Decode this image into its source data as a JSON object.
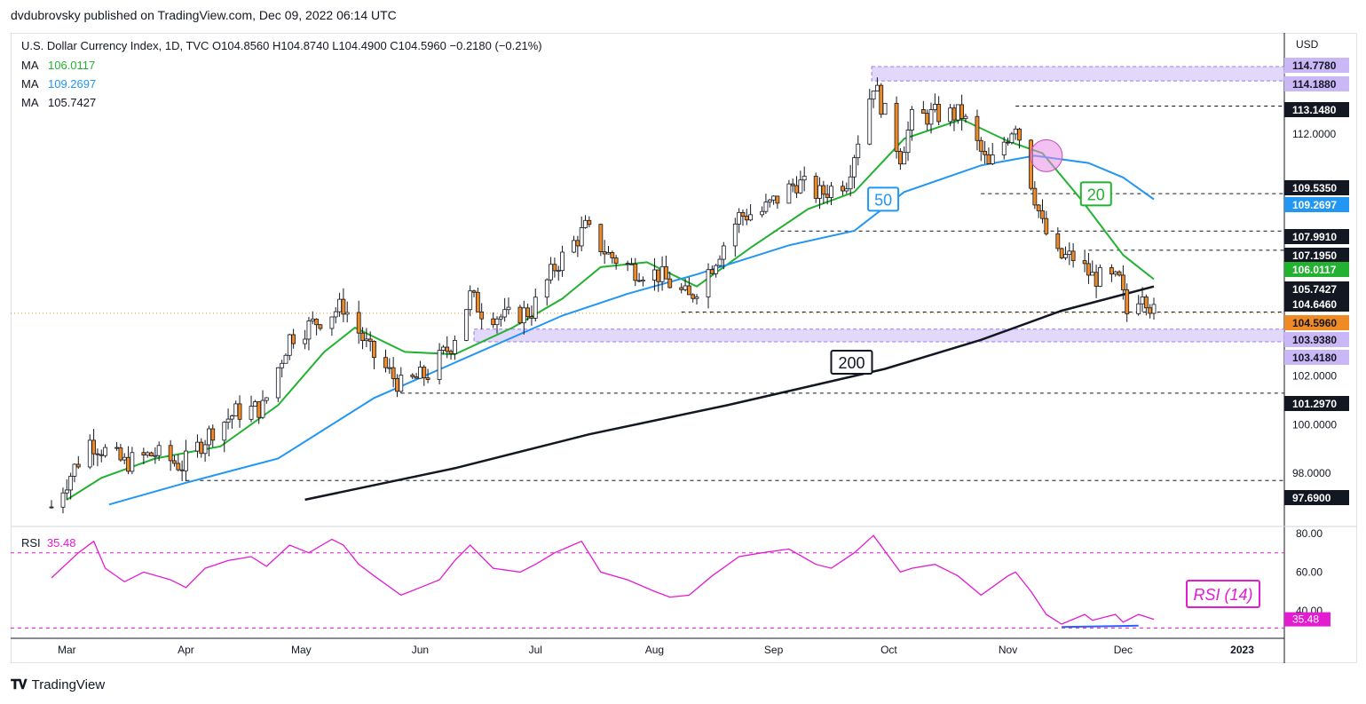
{
  "publisher": "dvdubrovsky published on TradingView.com, Dec 09, 2022 06:14 UTC",
  "legend": {
    "title": "U.S. Dollar Currency Index, 1D, TVC  O104.8560  H104.8740  L104.4900  C104.5960  −0.2180 (−0.21%)",
    "ma": [
      {
        "label": "MA",
        "value": "106.0117",
        "color": "#22b130"
      },
      {
        "label": "MA",
        "value": "109.2697",
        "color": "#2196f3"
      },
      {
        "label": "MA",
        "value": "105.7427",
        "color": "#131722"
      }
    ]
  },
  "rsi_legend": {
    "label": "RSI",
    "value": "35.48",
    "color": "#e31bd1"
  },
  "footer": {
    "brand": "TradingView",
    "logo": "tradingview-logo-icon"
  },
  "colors": {
    "up": "#ffffff",
    "down": "#f08a24",
    "wick": "#131722",
    "ma20": "#22b130",
    "ma50": "#2196f3",
    "ma200": "#131722",
    "rsi": "#e31bd1",
    "zone": "#c9b8f5"
  },
  "chart_data": [
    {
      "type": "candlestick",
      "title": "U.S. Dollar Currency Index, 1D, TVC",
      "currency_label": "USD",
      "ylim": [
        97.0,
        115.3
      ],
      "y_ticks": [
        "112.0000",
        "102.0000",
        "100.0000",
        "98.0000"
      ],
      "x_ticks": [
        "Mar",
        "Apr",
        "May",
        "Jun",
        "Jul",
        "Aug",
        "Sep",
        "Oct",
        "Nov",
        "Dec",
        "2023"
      ],
      "dates_range": [
        "2022-02-25",
        "2022-12-09"
      ],
      "price_tags": [
        {
          "text": "114.7780",
          "kind": "zone"
        },
        {
          "text": "114.1880",
          "kind": "zone"
        },
        {
          "text": "113.1480",
          "kind": "level"
        },
        {
          "text": "109.5350",
          "kind": "level"
        },
        {
          "text": "109.2697",
          "kind": "ma50"
        },
        {
          "text": "107.9910",
          "kind": "level"
        },
        {
          "text": "107.1950",
          "kind": "level"
        },
        {
          "text": "106.0117",
          "kind": "ma20"
        },
        {
          "text": "105.7427",
          "kind": "ma200"
        },
        {
          "text": "104.6460",
          "kind": "level"
        },
        {
          "text": "104.5960",
          "kind": "last"
        },
        {
          "text": "103.9380",
          "kind": "zone"
        },
        {
          "text": "103.4180",
          "kind": "zone"
        },
        {
          "text": "101.2970",
          "kind": "level"
        },
        {
          "text": "97.6900",
          "kind": "level"
        }
      ],
      "resistance_zone": [
        114.188,
        114.778
      ],
      "support_zone": [
        103.418,
        103.938
      ],
      "horizontal_levels": [
        113.148,
        109.535,
        107.991,
        107.195,
        104.646,
        101.297,
        97.69
      ],
      "last_price": 104.596,
      "close_path": [
        [
          "2022-02-25",
          96.6
        ],
        [
          "2022-03-07",
          99.3
        ],
        [
          "2022-03-16",
          98.4
        ],
        [
          "2022-03-24",
          98.8
        ],
        [
          "2022-03-31",
          98.3
        ],
        [
          "2022-04-08",
          99.8
        ],
        [
          "2022-04-14",
          100.5
        ],
        [
          "2022-04-21",
          100.7
        ],
        [
          "2022-04-28",
          103.6
        ],
        [
          "2022-05-12",
          104.9
        ],
        [
          "2022-05-19",
          103.0
        ],
        [
          "2022-05-27",
          101.6
        ],
        [
          "2022-06-03",
          102.1
        ],
        [
          "2022-06-09",
          103.3
        ],
        [
          "2022-06-14",
          105.3
        ],
        [
          "2022-06-17",
          104.7
        ],
        [
          "2022-06-23",
          104.4
        ],
        [
          "2022-06-30",
          104.7
        ],
        [
          "2022-07-06",
          106.5
        ],
        [
          "2022-07-14",
          108.1
        ],
        [
          "2022-07-20",
          107.0
        ],
        [
          "2022-07-27",
          106.4
        ],
        [
          "2022-08-02",
          106.2
        ],
        [
          "2022-08-10",
          105.2
        ],
        [
          "2022-08-16",
          106.6
        ],
        [
          "2022-08-23",
          108.6
        ],
        [
          "2022-08-29",
          108.8
        ],
        [
          "2022-09-07",
          110.0
        ],
        [
          "2022-09-13",
          109.5
        ],
        [
          "2022-09-20",
          110.1
        ],
        [
          "2022-09-27",
          114.1
        ],
        [
          "2022-10-04",
          111.1
        ],
        [
          "2022-10-07",
          112.6
        ],
        [
          "2022-10-13",
          112.8
        ],
        [
          "2022-10-20",
          112.8
        ],
        [
          "2022-10-27",
          110.6
        ],
        [
          "2022-11-03",
          112.5
        ],
        [
          "2022-11-10",
          108.2
        ],
        [
          "2022-11-14",
          106.9
        ],
        [
          "2022-11-18",
          106.9
        ],
        [
          "2022-11-23",
          106.1
        ],
        [
          "2022-11-30",
          105.9
        ],
        [
          "2022-12-02",
          104.6
        ],
        [
          "2022-12-06",
          105.6
        ],
        [
          "2022-12-09",
          104.6
        ]
      ],
      "series": [
        {
          "name": "MA 20",
          "label": "20",
          "value": 106.0117,
          "values": [
            [
              "2022-03-01",
              96.9
            ],
            [
              "2022-03-10",
              97.8
            ],
            [
              "2022-03-24",
              98.6
            ],
            [
              "2022-04-10",
              99.1
            ],
            [
              "2022-04-25",
              100.8
            ],
            [
              "2022-05-07",
              103.0
            ],
            [
              "2022-05-15",
              104.0
            ],
            [
              "2022-05-28",
              103.0
            ],
            [
              "2022-06-10",
              102.9
            ],
            [
              "2022-06-25",
              104.0
            ],
            [
              "2022-07-08",
              105.2
            ],
            [
              "2022-07-18",
              106.5
            ],
            [
              "2022-07-30",
              106.7
            ],
            [
              "2022-08-12",
              105.7
            ],
            [
              "2022-08-26",
              107.3
            ],
            [
              "2022-09-10",
              108.9
            ],
            [
              "2022-09-22",
              109.6
            ],
            [
              "2022-10-05",
              111.8
            ],
            [
              "2022-10-20",
              112.6
            ],
            [
              "2022-11-01",
              111.7
            ],
            [
              "2022-11-10",
              111.2
            ],
            [
              "2022-11-20",
              109.3
            ],
            [
              "2022-12-01",
              107.0
            ],
            [
              "2022-12-09",
              106.0
            ]
          ]
        },
        {
          "name": "MA 50",
          "label": "50",
          "value": 109.2697,
          "values": [
            [
              "2022-03-12",
              96.7
            ],
            [
              "2022-04-01",
              97.6
            ],
            [
              "2022-04-25",
              98.6
            ],
            [
              "2022-05-20",
              101.1
            ],
            [
              "2022-06-15",
              102.9
            ],
            [
              "2022-07-08",
              104.5
            ],
            [
              "2022-07-25",
              105.4
            ],
            [
              "2022-08-12",
              106.2
            ],
            [
              "2022-09-05",
              107.4
            ],
            [
              "2022-09-22",
              108.0
            ],
            [
              "2022-10-05",
              109.6
            ],
            [
              "2022-10-25",
              110.7
            ],
            [
              "2022-11-08",
              111.1
            ],
            [
              "2022-11-22",
              110.8
            ],
            [
              "2022-12-01",
              110.2
            ],
            [
              "2022-12-09",
              109.3
            ]
          ]
        },
        {
          "name": "MA 200",
          "label": "200",
          "value": 105.7427,
          "values": [
            [
              "2022-05-02",
              96.9
            ],
            [
              "2022-06-10",
              98.2
            ],
            [
              "2022-07-15",
              99.6
            ],
            [
              "2022-08-20",
              100.8
            ],
            [
              "2022-09-30",
              102.3
            ],
            [
              "2022-10-25",
              103.5
            ],
            [
              "2022-11-15",
              104.7
            ],
            [
              "2022-12-09",
              105.7
            ]
          ]
        }
      ],
      "annotations": [
        {
          "text": "50",
          "color": "#2196f3"
        },
        {
          "text": "20",
          "color": "#22b130"
        },
        {
          "text": "200",
          "color": "#131722"
        },
        {
          "text": "circle",
          "date": "2022-11-11",
          "value": 111.1,
          "color": "#e78ce6"
        }
      ]
    },
    {
      "type": "line",
      "name": "RSI (14)",
      "label": "RSI (14)",
      "value": 35.48,
      "ylim": [
        30,
        82
      ],
      "y_ticks": [
        "80.00",
        "60.00",
        "40.00"
      ],
      "last_tag": "35.48",
      "bands": [
        70,
        30
      ],
      "values": [
        [
          "2022-02-25",
          57
        ],
        [
          "2022-03-04",
          70
        ],
        [
          "2022-03-08",
          76
        ],
        [
          "2022-03-11",
          62
        ],
        [
          "2022-03-16",
          55
        ],
        [
          "2022-03-21",
          60
        ],
        [
          "2022-03-28",
          56
        ],
        [
          "2022-04-01",
          52
        ],
        [
          "2022-04-06",
          62
        ],
        [
          "2022-04-12",
          66
        ],
        [
          "2022-04-18",
          68
        ],
        [
          "2022-04-22",
          63
        ],
        [
          "2022-04-28",
          74
        ],
        [
          "2022-05-03",
          70
        ],
        [
          "2022-05-09",
          77
        ],
        [
          "2022-05-12",
          74
        ],
        [
          "2022-05-16",
          64
        ],
        [
          "2022-05-20",
          58
        ],
        [
          "2022-05-27",
          48
        ],
        [
          "2022-06-01",
          52
        ],
        [
          "2022-06-06",
          56
        ],
        [
          "2022-06-10",
          66
        ],
        [
          "2022-06-14",
          74
        ],
        [
          "2022-06-20",
          62
        ],
        [
          "2022-06-27",
          60
        ],
        [
          "2022-07-01",
          64
        ],
        [
          "2022-07-06",
          70
        ],
        [
          "2022-07-13",
          76
        ],
        [
          "2022-07-18",
          60
        ],
        [
          "2022-07-25",
          56
        ],
        [
          "2022-08-01",
          50
        ],
        [
          "2022-08-05",
          47
        ],
        [
          "2022-08-10",
          48
        ],
        [
          "2022-08-16",
          58
        ],
        [
          "2022-08-23",
          68
        ],
        [
          "2022-08-29",
          70
        ],
        [
          "2022-09-05",
          72
        ],
        [
          "2022-09-12",
          64
        ],
        [
          "2022-09-16",
          62
        ],
        [
          "2022-09-22",
          70
        ],
        [
          "2022-09-27",
          79
        ],
        [
          "2022-10-04",
          60
        ],
        [
          "2022-10-07",
          62
        ],
        [
          "2022-10-13",
          64
        ],
        [
          "2022-10-19",
          58
        ],
        [
          "2022-10-25",
          48
        ],
        [
          "2022-11-01",
          58
        ],
        [
          "2022-11-03",
          60
        ],
        [
          "2022-11-07",
          50
        ],
        [
          "2022-11-11",
          38
        ],
        [
          "2022-11-15",
          33
        ],
        [
          "2022-11-21",
          38
        ],
        [
          "2022-11-23",
          35
        ],
        [
          "2022-11-29",
          38
        ],
        [
          "2022-12-01",
          34
        ],
        [
          "2022-12-05",
          38
        ],
        [
          "2022-12-09",
          35.48
        ]
      ],
      "divergence_line": [
        [
          "2022-11-15",
          31.5
        ],
        [
          "2022-12-05",
          32.2
        ]
      ]
    }
  ]
}
